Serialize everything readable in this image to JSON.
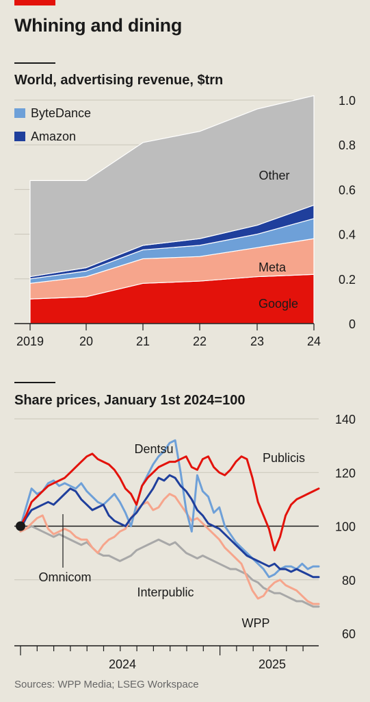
{
  "title": "Whining and dining",
  "source": "Sources: WPP Media; LSEG Workspace",
  "chart_data": [
    {
      "type": "area",
      "subtitle": "World, advertising revenue, $trn",
      "stacked": true,
      "x": [
        "2019",
        "20",
        "21",
        "22",
        "23",
        "24"
      ],
      "ylim": [
        0,
        1.0
      ],
      "yticks": [
        "0",
        "0.2",
        "0.4",
        "0.6",
        "0.8",
        "1.0"
      ],
      "grid": true,
      "legend_position": "top-left",
      "series": [
        {
          "name": "Google",
          "values": [
            0.11,
            0.12,
            0.18,
            0.19,
            0.21,
            0.22
          ],
          "color": "#e3120b"
        },
        {
          "name": "Meta",
          "values": [
            0.07,
            0.09,
            0.11,
            0.11,
            0.13,
            0.16
          ],
          "color": "#f6a58c"
        },
        {
          "name": "ByteDance",
          "values": [
            0.02,
            0.025,
            0.04,
            0.05,
            0.06,
            0.09
          ],
          "color": "#6ea0d8"
        },
        {
          "name": "Amazon",
          "values": [
            0.01,
            0.015,
            0.02,
            0.03,
            0.04,
            0.06
          ],
          "color": "#1f3f9c"
        },
        {
          "name": "Other",
          "values": [
            0.43,
            0.39,
            0.46,
            0.48,
            0.52,
            0.49
          ],
          "color": "#bdbdbd"
        }
      ]
    },
    {
      "type": "line",
      "subtitle": "Share prices, January 1st 2024=100",
      "ylim": [
        60,
        140
      ],
      "yticks": [
        "60",
        "80",
        "100",
        "120",
        "140"
      ],
      "baseline": 100,
      "x_labels": [
        "2024",
        "2025"
      ],
      "grid": true,
      "series": [
        {
          "name": "Publicis",
          "color": "#e3120b",
          "values": [
            100,
            104,
            109,
            111,
            113,
            115,
            116,
            117,
            118,
            120,
            122,
            124,
            126,
            127,
            125,
            124,
            123,
            121,
            118,
            114,
            112,
            108,
            115,
            118,
            120,
            122,
            123,
            124,
            124,
            125,
            126,
            122,
            121,
            125,
            126,
            122,
            120,
            119,
            121,
            124,
            126,
            125,
            118,
            109,
            104,
            99,
            91,
            96,
            104,
            108,
            110,
            111,
            112,
            113,
            114
          ]
        },
        {
          "name": "Dentsu",
          "color": "#6ea0d8",
          "values": [
            100,
            107,
            114,
            112,
            113,
            116,
            117,
            115,
            116,
            115,
            114,
            116,
            113,
            111,
            109,
            108,
            110,
            112,
            109,
            105,
            100,
            108,
            115,
            119,
            123,
            126,
            128,
            131,
            132,
            120,
            106,
            98,
            119,
            113,
            111,
            105,
            107,
            100,
            97,
            94,
            92,
            90,
            88,
            86,
            84,
            81,
            82,
            84,
            85,
            85,
            84,
            86,
            84,
            85,
            85
          ]
        },
        {
          "name": "Omnicom",
          "color": "#1f3f9c",
          "values": [
            99,
            103,
            106,
            107,
            108,
            109,
            108,
            110,
            112,
            114,
            113,
            110,
            108,
            106,
            107,
            108,
            104,
            102,
            101,
            100,
            103,
            105,
            108,
            111,
            114,
            118,
            117,
            119,
            118,
            115,
            113,
            110,
            106,
            104,
            101,
            100,
            99,
            97,
            95,
            93,
            91,
            89,
            88,
            87,
            86,
            85,
            86,
            84,
            84,
            83,
            84,
            83,
            82,
            81,
            81
          ]
        },
        {
          "name": "WPP",
          "color": "#f6a58c",
          "values": [
            98,
            99,
            101,
            103,
            104,
            99,
            97,
            98,
            99,
            98,
            96,
            95,
            95,
            92,
            90,
            93,
            95,
            96,
            98,
            99,
            103,
            106,
            108,
            109,
            106,
            107,
            110,
            112,
            111,
            108,
            105,
            102,
            103,
            101,
            99,
            97,
            95,
            92,
            90,
            88,
            86,
            81,
            76,
            73,
            74,
            77,
            79,
            80,
            78,
            77,
            76,
            74,
            72,
            71,
            71
          ]
        },
        {
          "name": "Interpublic",
          "color": "#a8a8a8",
          "values": [
            98,
            99,
            100,
            99,
            98,
            97,
            96,
            97,
            96,
            95,
            94,
            93,
            94,
            92,
            90,
            89,
            89,
            88,
            87,
            88,
            89,
            91,
            92,
            93,
            94,
            95,
            94,
            93,
            94,
            92,
            90,
            89,
            88,
            89,
            88,
            87,
            86,
            85,
            84,
            84,
            83,
            82,
            80,
            79,
            77,
            76,
            75,
            75,
            74,
            73,
            72,
            72,
            71,
            70,
            70
          ]
        }
      ]
    }
  ]
}
